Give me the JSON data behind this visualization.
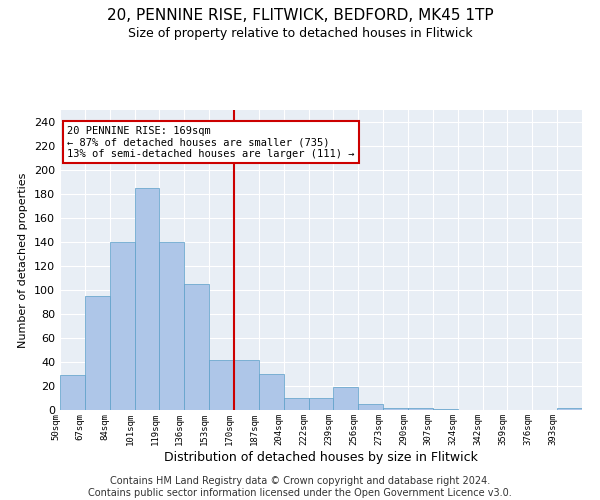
{
  "title": "20, PENNINE RISE, FLITWICK, BEDFORD, MK45 1TP",
  "subtitle": "Size of property relative to detached houses in Flitwick",
  "xlabel": "Distribution of detached houses by size in Flitwick",
  "ylabel": "Number of detached properties",
  "categories": [
    "50sqm",
    "67sqm",
    "84sqm",
    "101sqm",
    "119sqm",
    "136sqm",
    "153sqm",
    "170sqm",
    "187sqm",
    "204sqm",
    "222sqm",
    "239sqm",
    "256sqm",
    "273sqm",
    "290sqm",
    "307sqm",
    "324sqm",
    "342sqm",
    "359sqm",
    "376sqm",
    "393sqm"
  ],
  "values": [
    29,
    95,
    140,
    185,
    140,
    105,
    42,
    42,
    30,
    10,
    10,
    19,
    5,
    2,
    2,
    1,
    0,
    0,
    0,
    0,
    2
  ],
  "bar_color": "#aec6e8",
  "bar_edge_color": "#5a9fc8",
  "vline_color": "#cc0000",
  "annotation_text": "20 PENNINE RISE: 169sqm\n← 87% of detached houses are smaller (735)\n13% of semi-detached houses are larger (111) →",
  "annotation_box_color": "#ffffff",
  "annotation_box_edge": "#cc0000",
  "ylim": [
    0,
    250
  ],
  "yticks": [
    0,
    20,
    40,
    60,
    80,
    100,
    120,
    140,
    160,
    180,
    200,
    220,
    240
  ],
  "bg_color": "#e8eef5",
  "title_fontsize": 11,
  "subtitle_fontsize": 9,
  "ylabel_fontsize": 8,
  "xlabel_fontsize": 9,
  "footer_text": "Contains HM Land Registry data © Crown copyright and database right 2024.\nContains public sector information licensed under the Open Government Licence v3.0.",
  "footer_fontsize": 7
}
